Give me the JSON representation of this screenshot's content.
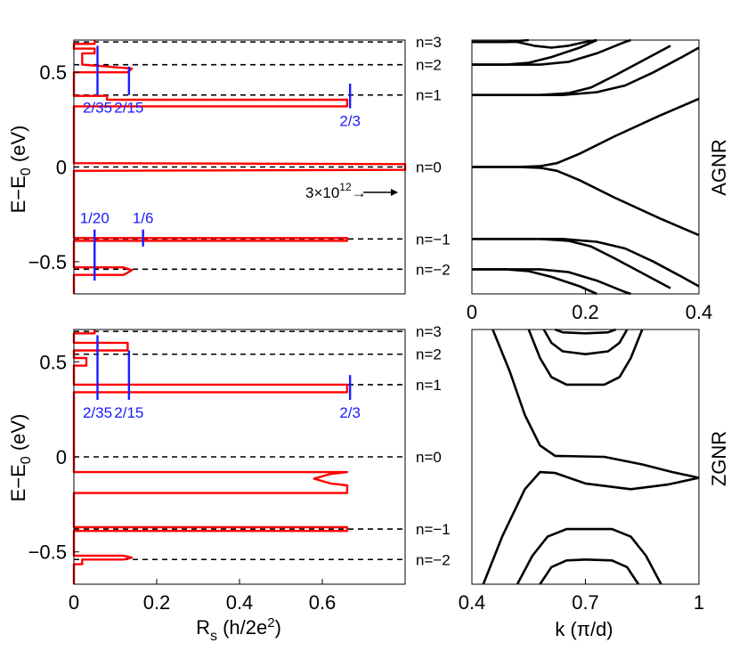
{
  "chart_data": [
    {
      "type": "line",
      "panel": "top-left",
      "title": "",
      "xlabel": "R_s (h/2e^2)",
      "ylabel": "E - E_0 (eV)",
      "xlim": [
        0,
        0.8
      ],
      "ylim": [
        -0.67,
        0.67
      ],
      "y_ticks": [
        {
          "v": 0.5,
          "label": "0.5"
        },
        {
          "v": 0,
          "label": "0"
        },
        {
          "v": -0.5,
          "label": "−0.5"
        }
      ],
      "levels": [
        {
          "label": "n=3",
          "y": 0.66
        },
        {
          "label": "n=2",
          "y": 0.54
        },
        {
          "label": "n=1",
          "y": 0.38
        },
        {
          "label": "n=0",
          "y": 0.0
        },
        {
          "label": "n=−1",
          "y": -0.38
        },
        {
          "label": "n=−2",
          "y": -0.54
        }
      ],
      "plateaus": [
        {
          "label": "2/35",
          "x": 0.057,
          "y_from": 0.38,
          "y_to": 0.64
        },
        {
          "label": "2/15",
          "x": 0.133,
          "y_from": 0.38,
          "y_to": 0.53
        },
        {
          "label": "2/3",
          "x": 0.667,
          "y_from": 0.31,
          "y_to": 0.44
        },
        {
          "label": "1/20",
          "x": 0.05,
          "y_from": -0.6,
          "y_to": -0.33
        },
        {
          "label": "1/6",
          "x": 0.167,
          "y_from": -0.42,
          "y_to": -0.33
        }
      ],
      "annotation": {
        "base": "3×10",
        "exponent": "12",
        "arrow": "→"
      },
      "series": [
        {
          "name": "R_s",
          "color": "#ff0000",
          "points": [
            [
              0,
              -0.67
            ],
            [
              0,
              -0.57
            ],
            [
              0.12,
              -0.57
            ],
            [
              0.14,
              -0.545
            ],
            [
              0.12,
              -0.53
            ],
            [
              0,
              -0.53
            ],
            [
              0,
              -0.39
            ],
            [
              0.66,
              -0.39
            ],
            [
              0.66,
              -0.375
            ],
            [
              0,
              -0.375
            ],
            [
              0,
              -0.02
            ],
            [
              0.8,
              -0.015
            ],
            [
              0.8,
              0.015
            ],
            [
              0,
              0.02
            ],
            [
              0,
              0.32
            ],
            [
              0.66,
              0.32
            ],
            [
              0.66,
              0.355
            ],
            [
              0.08,
              0.355
            ],
            [
              0.08,
              0.375
            ],
            [
              0,
              0.375
            ],
            [
              0,
              0.5
            ],
            [
              0.13,
              0.5
            ],
            [
              0.14,
              0.52
            ],
            [
              0.02,
              0.54
            ],
            [
              0.02,
              0.6
            ],
            [
              0.05,
              0.6
            ],
            [
              0.05,
              0.625
            ],
            [
              0,
              0.625
            ],
            [
              0,
              0.65
            ],
            [
              0.05,
              0.65
            ],
            [
              0.05,
              0.67
            ]
          ]
        }
      ]
    },
    {
      "type": "line",
      "panel": "top-right",
      "label": "AGNR",
      "xlabel": "",
      "ylabel": "",
      "xlim": [
        0,
        0.4
      ],
      "ylim": [
        -0.67,
        0.67
      ],
      "x_ticks": [
        {
          "v": 0,
          "label": "0"
        },
        {
          "v": 0.2,
          "label": "0.2"
        },
        {
          "v": 0.4,
          "label": "0.4"
        }
      ],
      "series": [
        {
          "name": "n=0 upper",
          "points": [
            [
              0,
              0
            ],
            [
              0.08,
              0
            ],
            [
              0.12,
              0.004
            ],
            [
              0.15,
              0.02
            ],
            [
              0.19,
              0.07
            ],
            [
              0.25,
              0.16
            ],
            [
              0.33,
              0.27
            ],
            [
              0.4,
              0.36
            ]
          ]
        },
        {
          "name": "n=0 lower",
          "points": [
            [
              0,
              0
            ],
            [
              0.08,
              0
            ],
            [
              0.12,
              -0.004
            ],
            [
              0.15,
              -0.02
            ],
            [
              0.19,
              -0.07
            ],
            [
              0.25,
              -0.16
            ],
            [
              0.33,
              -0.27
            ],
            [
              0.4,
              -0.36
            ]
          ]
        },
        {
          "name": "n=1",
          "points": [
            [
              0,
              0.38
            ],
            [
              0.12,
              0.38
            ],
            [
              0.17,
              0.39
            ],
            [
              0.21,
              0.42
            ],
            [
              0.25,
              0.48
            ],
            [
              0.3,
              0.56
            ],
            [
              0.35,
              0.64
            ]
          ]
        },
        {
          "name": "n=1 second",
          "points": [
            [
              0,
              0.38
            ],
            [
              0.16,
              0.38
            ],
            [
              0.22,
              0.395
            ],
            [
              0.27,
              0.43
            ],
            [
              0.32,
              0.5
            ],
            [
              0.37,
              0.58
            ],
            [
              0.4,
              0.63
            ]
          ]
        },
        {
          "name": "n=2",
          "points": [
            [
              0,
              0.54
            ],
            [
              0.06,
              0.54
            ],
            [
              0.1,
              0.55
            ],
            [
              0.14,
              0.58
            ],
            [
              0.19,
              0.63
            ],
            [
              0.22,
              0.67
            ]
          ]
        },
        {
          "name": "n=2 second",
          "points": [
            [
              0,
              0.54
            ],
            [
              0.12,
              0.54
            ],
            [
              0.17,
              0.555
            ],
            [
              0.22,
              0.6
            ],
            [
              0.27,
              0.66
            ],
            [
              0.28,
              0.67
            ]
          ]
        },
        {
          "name": "n=3",
          "points": [
            [
              0,
              0.66
            ],
            [
              0.06,
              0.66
            ],
            [
              0.1,
              0.67
            ]
          ]
        },
        {
          "name": "n=3 second",
          "points": [
            [
              0,
              0.66
            ],
            [
              0.08,
              0.66
            ],
            [
              0.11,
              0.64
            ],
            [
              0.14,
              0.63
            ],
            [
              0.17,
              0.64
            ],
            [
              0.2,
              0.66
            ],
            [
              0.22,
              0.67
            ]
          ]
        },
        {
          "name": "n=-1",
          "points": [
            [
              0,
              -0.38
            ],
            [
              0.12,
              -0.38
            ],
            [
              0.17,
              -0.39
            ],
            [
              0.21,
              -0.42
            ],
            [
              0.25,
              -0.48
            ],
            [
              0.3,
              -0.56
            ],
            [
              0.35,
              -0.64
            ]
          ]
        },
        {
          "name": "n=-1 second",
          "points": [
            [
              0,
              -0.38
            ],
            [
              0.16,
              -0.38
            ],
            [
              0.22,
              -0.395
            ],
            [
              0.27,
              -0.43
            ],
            [
              0.32,
              -0.5
            ],
            [
              0.37,
              -0.58
            ],
            [
              0.4,
              -0.63
            ]
          ]
        },
        {
          "name": "n=-2",
          "points": [
            [
              0,
              -0.54
            ],
            [
              0.06,
              -0.54
            ],
            [
              0.1,
              -0.55
            ],
            [
              0.14,
              -0.58
            ],
            [
              0.19,
              -0.63
            ],
            [
              0.22,
              -0.67
            ]
          ]
        },
        {
          "name": "n=-2 second",
          "points": [
            [
              0,
              -0.54
            ],
            [
              0.12,
              -0.54
            ],
            [
              0.17,
              -0.555
            ],
            [
              0.22,
              -0.6
            ],
            [
              0.27,
              -0.66
            ],
            [
              0.28,
              -0.67
            ]
          ]
        }
      ]
    },
    {
      "type": "line",
      "panel": "bottom-left",
      "title": "",
      "xlabel": "R_s (h/2e^2)",
      "ylabel": "E - E_0 (eV)",
      "xlim": [
        0,
        0.8
      ],
      "ylim": [
        -0.67,
        0.67
      ],
      "x_ticks": [
        {
          "v": 0,
          "label": "0"
        },
        {
          "v": 0.2,
          "label": "0.2"
        },
        {
          "v": 0.4,
          "label": "0.4"
        },
        {
          "v": 0.6,
          "label": "0.6"
        }
      ],
      "y_ticks": [
        {
          "v": 0.5,
          "label": "0.5"
        },
        {
          "v": 0,
          "label": "0"
        },
        {
          "v": -0.5,
          "label": "−0.5"
        }
      ],
      "levels": [
        {
          "label": "n=3",
          "y": 0.66
        },
        {
          "label": "n=2",
          "y": 0.54
        },
        {
          "label": "n=1",
          "y": 0.38
        },
        {
          "label": "n=0",
          "y": 0.0
        },
        {
          "label": "n=−1",
          "y": -0.38
        },
        {
          "label": "n=−2",
          "y": -0.54
        }
      ],
      "plateaus": [
        {
          "label": "2/35",
          "x": 0.057,
          "y_from": 0.3,
          "y_to": 0.64
        },
        {
          "label": "2/15",
          "x": 0.133,
          "y_from": 0.3,
          "y_to": 0.56
        },
        {
          "label": "2/3",
          "x": 0.667,
          "y_from": 0.3,
          "y_to": 0.43
        }
      ],
      "series": [
        {
          "name": "R_s",
          "color": "#ff0000",
          "points": [
            [
              0,
              -0.67
            ],
            [
              0,
              -0.565
            ],
            [
              0.02,
              -0.565
            ],
            [
              0.02,
              -0.54
            ],
            [
              0.12,
              -0.54
            ],
            [
              0.14,
              -0.53
            ],
            [
              0.12,
              -0.52
            ],
            [
              0,
              -0.52
            ],
            [
              0,
              -0.39
            ],
            [
              0.66,
              -0.39
            ],
            [
              0.66,
              -0.37
            ],
            [
              0,
              -0.37
            ],
            [
              0,
              -0.19
            ],
            [
              0.66,
              -0.19
            ],
            [
              0.66,
              -0.15
            ],
            [
              0.62,
              -0.14
            ],
            [
              0.58,
              -0.115
            ],
            [
              0.62,
              -0.09
            ],
            [
              0.66,
              -0.08
            ],
            [
              0,
              -0.08
            ],
            [
              0,
              0.34
            ],
            [
              0.66,
              0.34
            ],
            [
              0.66,
              0.38
            ],
            [
              0,
              0.38
            ],
            [
              0,
              0.48
            ],
            [
              0.03,
              0.48
            ],
            [
              0.03,
              0.52
            ],
            [
              0,
              0.52
            ],
            [
              0,
              0.56
            ],
            [
              0.13,
              0.56
            ],
            [
              0.13,
              0.6
            ],
            [
              0,
              0.6
            ],
            [
              0,
              0.65
            ],
            [
              0.05,
              0.65
            ],
            [
              0.05,
              0.67
            ]
          ]
        }
      ]
    },
    {
      "type": "line",
      "panel": "bottom-right",
      "label": "ZGNR",
      "xlabel": "k (π/d)",
      "ylabel": "",
      "xlim": [
        0.4,
        1.0
      ],
      "ylim": [
        -0.67,
        0.67
      ],
      "x_ticks": [
        {
          "v": 0.4,
          "label": "0.4"
        },
        {
          "v": 0.7,
          "label": "0.7"
        },
        {
          "v": 1.0,
          "label": "1"
        }
      ],
      "series": [
        {
          "name": "edge upper",
          "points": [
            [
              0.455,
              0.67
            ],
            [
              0.5,
              0.45
            ],
            [
              0.54,
              0.22
            ],
            [
              0.58,
              0.06
            ],
            [
              0.62,
              0.005
            ],
            [
              0.75,
              0.0
            ],
            [
              0.85,
              -0.04
            ],
            [
              0.93,
              -0.08
            ],
            [
              1.0,
              -0.11
            ]
          ]
        },
        {
          "name": "edge lower",
          "points": [
            [
              0.43,
              -0.67
            ],
            [
              0.48,
              -0.42
            ],
            [
              0.54,
              -0.17
            ],
            [
              0.58,
              -0.08
            ],
            [
              0.62,
              -0.085
            ],
            [
              0.7,
              -0.14
            ],
            [
              0.82,
              -0.17
            ],
            [
              0.92,
              -0.145
            ],
            [
              1.0,
              -0.11
            ]
          ]
        },
        {
          "name": "n=1",
          "points": [
            [
              0.55,
              0.67
            ],
            [
              0.58,
              0.52
            ],
            [
              0.61,
              0.42
            ],
            [
              0.65,
              0.38
            ],
            [
              0.7,
              0.38
            ],
            [
              0.75,
              0.38
            ],
            [
              0.79,
              0.42
            ],
            [
              0.82,
              0.52
            ],
            [
              0.85,
              0.67
            ]
          ]
        },
        {
          "name": "n=2",
          "points": [
            [
              0.59,
              0.67
            ],
            [
              0.61,
              0.6
            ],
            [
              0.64,
              0.555
            ],
            [
              0.7,
              0.54
            ],
            [
              0.76,
              0.555
            ],
            [
              0.79,
              0.6
            ],
            [
              0.81,
              0.67
            ]
          ]
        },
        {
          "name": "n=3",
          "points": [
            [
              0.62,
              0.67
            ],
            [
              0.64,
              0.655
            ],
            [
              0.7,
              0.65
            ],
            [
              0.76,
              0.655
            ],
            [
              0.78,
              0.67
            ]
          ]
        },
        {
          "name": "n=-1",
          "points": [
            [
              0.52,
              -0.67
            ],
            [
              0.56,
              -0.52
            ],
            [
              0.6,
              -0.42
            ],
            [
              0.65,
              -0.38
            ],
            [
              0.7,
              -0.38
            ],
            [
              0.77,
              -0.38
            ],
            [
              0.82,
              -0.42
            ],
            [
              0.86,
              -0.52
            ],
            [
              0.9,
              -0.67
            ]
          ]
        },
        {
          "name": "n=-2",
          "points": [
            [
              0.58,
              -0.67
            ],
            [
              0.61,
              -0.58
            ],
            [
              0.65,
              -0.545
            ],
            [
              0.7,
              -0.54
            ],
            [
              0.77,
              -0.545
            ],
            [
              0.81,
              -0.58
            ],
            [
              0.84,
              -0.67
            ]
          ]
        }
      ]
    }
  ]
}
